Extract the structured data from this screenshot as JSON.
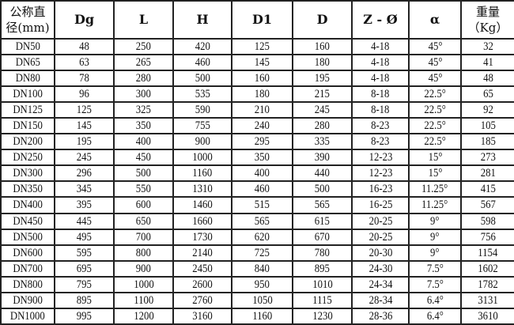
{
  "headers": [
    [
      "公称直",
      "径(mm)"
    ],
    [
      "Dg"
    ],
    [
      "L"
    ],
    [
      "H"
    ],
    [
      "D1"
    ],
    [
      "D"
    ],
    [
      "Z - Ø"
    ],
    [
      "α"
    ],
    [
      "重量",
      "（Kg）"
    ]
  ],
  "rows": [
    [
      "DN50",
      "48",
      "250",
      "420",
      "125",
      "160",
      "4-18",
      "45°",
      "32"
    ],
    [
      "DN65",
      "63",
      "265",
      "460",
      "145",
      "180",
      "4-18",
      "45°",
      "41"
    ],
    [
      "DN80",
      "78",
      "280",
      "500",
      "160",
      "195",
      "4-18",
      "45°",
      "48"
    ],
    [
      "DN100",
      "96",
      "300",
      "535",
      "180",
      "215",
      "8-18",
      "22.5°",
      "65"
    ],
    [
      "DN125",
      "125",
      "325",
      "590",
      "210",
      "245",
      "8-18",
      "22.5°",
      "92"
    ],
    [
      "DN150",
      "145",
      "350",
      "755",
      "240",
      "280",
      "8-23",
      "22.5°",
      "105"
    ],
    [
      "DN200",
      "195",
      "400",
      "900",
      "295",
      "335",
      "8-23",
      "22.5°",
      "185"
    ],
    [
      "DN250",
      "245",
      "450",
      "1000",
      "350",
      "390",
      "12-23",
      "15°",
      "273"
    ],
    [
      "DN300",
      "296",
      "500",
      "1160",
      "400",
      "440",
      "12-23",
      "15°",
      "281"
    ],
    [
      "DN350",
      "345",
      "550",
      "1310",
      "460",
      "500",
      "16-23",
      "11.25°",
      "415"
    ],
    [
      "DN400",
      "395",
      "600",
      "1460",
      "515",
      "565",
      "16-25",
      "11.25°",
      "567"
    ],
    [
      "DN450",
      "445",
      "650",
      "1660",
      "565",
      "615",
      "20-25",
      "9°",
      "598"
    ],
    [
      "DN500",
      "495",
      "700",
      "1730",
      "620",
      "670",
      "20-25",
      "9°",
      "756"
    ],
    [
      "DN600",
      "595",
      "800",
      "2140",
      "725",
      "780",
      "20-30",
      "9°",
      "1154"
    ],
    [
      "DN700",
      "695",
      "900",
      "2450",
      "840",
      "895",
      "24-30",
      "7.5°",
      "1602"
    ],
    [
      "DN800",
      "795",
      "1000",
      "2600",
      "950",
      "1010",
      "24-34",
      "7.5°",
      "1782"
    ],
    [
      "DN900",
      "895",
      "1100",
      "2760",
      "1050",
      "1115",
      "28-34",
      "6.4°",
      "3131"
    ],
    [
      "DN1000",
      "995",
      "1200",
      "3160",
      "1160",
      "1230",
      "28-36",
      "6.4°",
      "3610"
    ]
  ]
}
